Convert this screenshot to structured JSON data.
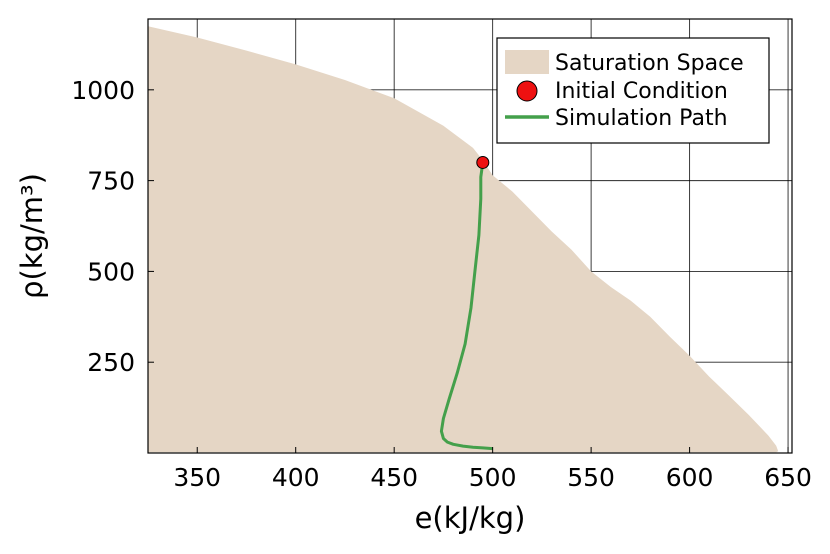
{
  "chart_data": {
    "type": "area",
    "xlabel": "e(kJ/kg)",
    "ylabel": "ρ(kg/m³)",
    "xlim": [
      325,
      652
    ],
    "ylim": [
      0,
      1195
    ],
    "xticks": [
      350,
      400,
      450,
      500,
      550,
      600,
      650
    ],
    "yticks": [
      250,
      500,
      750,
      1000
    ],
    "grid": true,
    "legend_position": "top-right",
    "colors": {
      "saturation_space": "#e5d6c5",
      "initial_condition": "#ee1111",
      "simulation_path": "#44a04b",
      "grid": "#000000"
    },
    "series": [
      {
        "name": "Saturation Space",
        "kind": "area",
        "x": [
          325,
          350,
          375,
          400,
          425,
          450,
          475,
          490,
          495,
          500,
          510,
          520,
          530,
          540,
          550,
          560,
          570,
          580,
          590,
          600,
          610,
          620,
          630,
          640,
          644,
          645,
          644,
          642,
          635,
          620,
          600,
          575,
          550,
          525,
          500,
          475,
          450,
          425,
          400,
          375,
          350,
          325
        ],
        "y": [
          1175,
          1144,
          1108,
          1070,
          1027,
          977,
          901,
          840,
          806,
          765,
          720,
          665,
          610,
          560,
          500,
          457,
          420,
          375,
          320,
          268,
          210,
          158,
          105,
          48,
          20,
          5,
          2,
          2,
          2,
          2,
          2,
          2,
          2,
          2,
          2,
          2,
          2,
          2,
          2,
          2,
          2,
          2
        ]
      },
      {
        "name": "Initial Condition",
        "kind": "scatter",
        "x": [
          495
        ],
        "y": [
          800
        ]
      },
      {
        "name": "Simulation Path",
        "kind": "line",
        "x": [
          495,
          494,
          494,
          493,
          491,
          489,
          486,
          482,
          478,
          475,
          474,
          475,
          477,
          480,
          485,
          490,
          495,
          500
        ],
        "y": [
          800,
          760,
          700,
          600,
          500,
          400,
          300,
          220,
          150,
          95,
          60,
          40,
          30,
          24,
          19,
          16,
          14,
          12
        ]
      }
    ]
  }
}
